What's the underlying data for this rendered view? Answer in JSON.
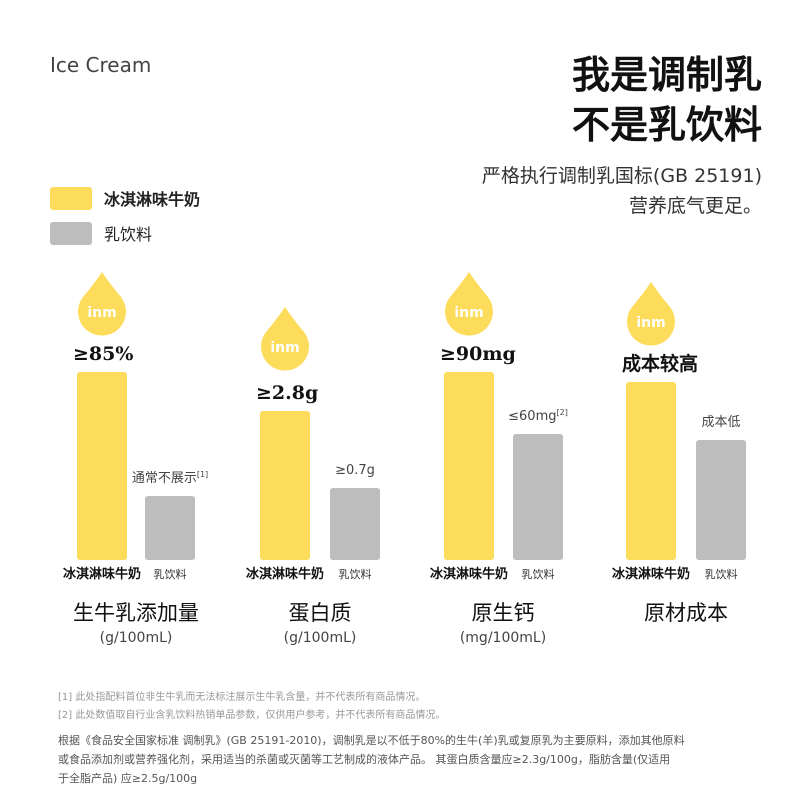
{
  "brand": "Ice Cream",
  "headline": [
    "我是调制乳",
    "不是乳饮料"
  ],
  "subhead": [
    "严格执行调制乳国标(GB 25191)",
    "营养底气更足。"
  ],
  "legend": [
    "冰淇淋味牛奶",
    "乳饮料"
  ],
  "groups": [
    {
      "badge": "inm",
      "top_label": "≥85%",
      "other_label": "通常不展示",
      "other_note": "[1]",
      "bar_names": [
        "冰淇淋味牛奶",
        "乳饮料"
      ],
      "title": "生牛乳添加量",
      "unit": "(g/100mL)"
    },
    {
      "badge": "inm",
      "top_label": "≥2.8g",
      "other_label": "≥0.7g",
      "bar_names": [
        "冰淇淋味牛奶",
        "乳饮料"
      ],
      "title": "蛋白质",
      "unit": "(g/100mL)"
    },
    {
      "badge": "inm",
      "top_label": "≥90mg",
      "other_label": "≤60mg",
      "other_note": "[2]",
      "bar_names": [
        "冰淇淋味牛奶",
        "乳饮料"
      ],
      "title": "原生钙",
      "unit": "(mg/100mL)"
    },
    {
      "badge": "inm",
      "top_label": "成本较高",
      "other_label": "成本低",
      "bar_names": [
        "冰淇淋味牛奶",
        "乳饮料"
      ],
      "title": "原材成本"
    }
  ],
  "footnotes": [
    "[1] 此处指配料首位非生牛乳而无法标注展示生牛乳含量，并不代表所有商品情况。",
    "[2] 此处数值取自行业含乳饮料热销单品参数，仅供用户参考，并不代表所有商品情况。"
  ],
  "description": [
    "根据《食品安全国家标准 调制乳》(GB 25191-2010)，调制乳是以不低于80%的生牛(羊)乳或复原乳为主要原料，添加其他原料",
    "或食品添加剂或营养强化剂，采用适当的杀菌或灭菌等工艺制成的液体产品。 其蛋白质含量应≥2.3g/100g，脂肪含量(仅适用",
    "于全脂产品) 应≥2.5g/100g"
  ]
}
